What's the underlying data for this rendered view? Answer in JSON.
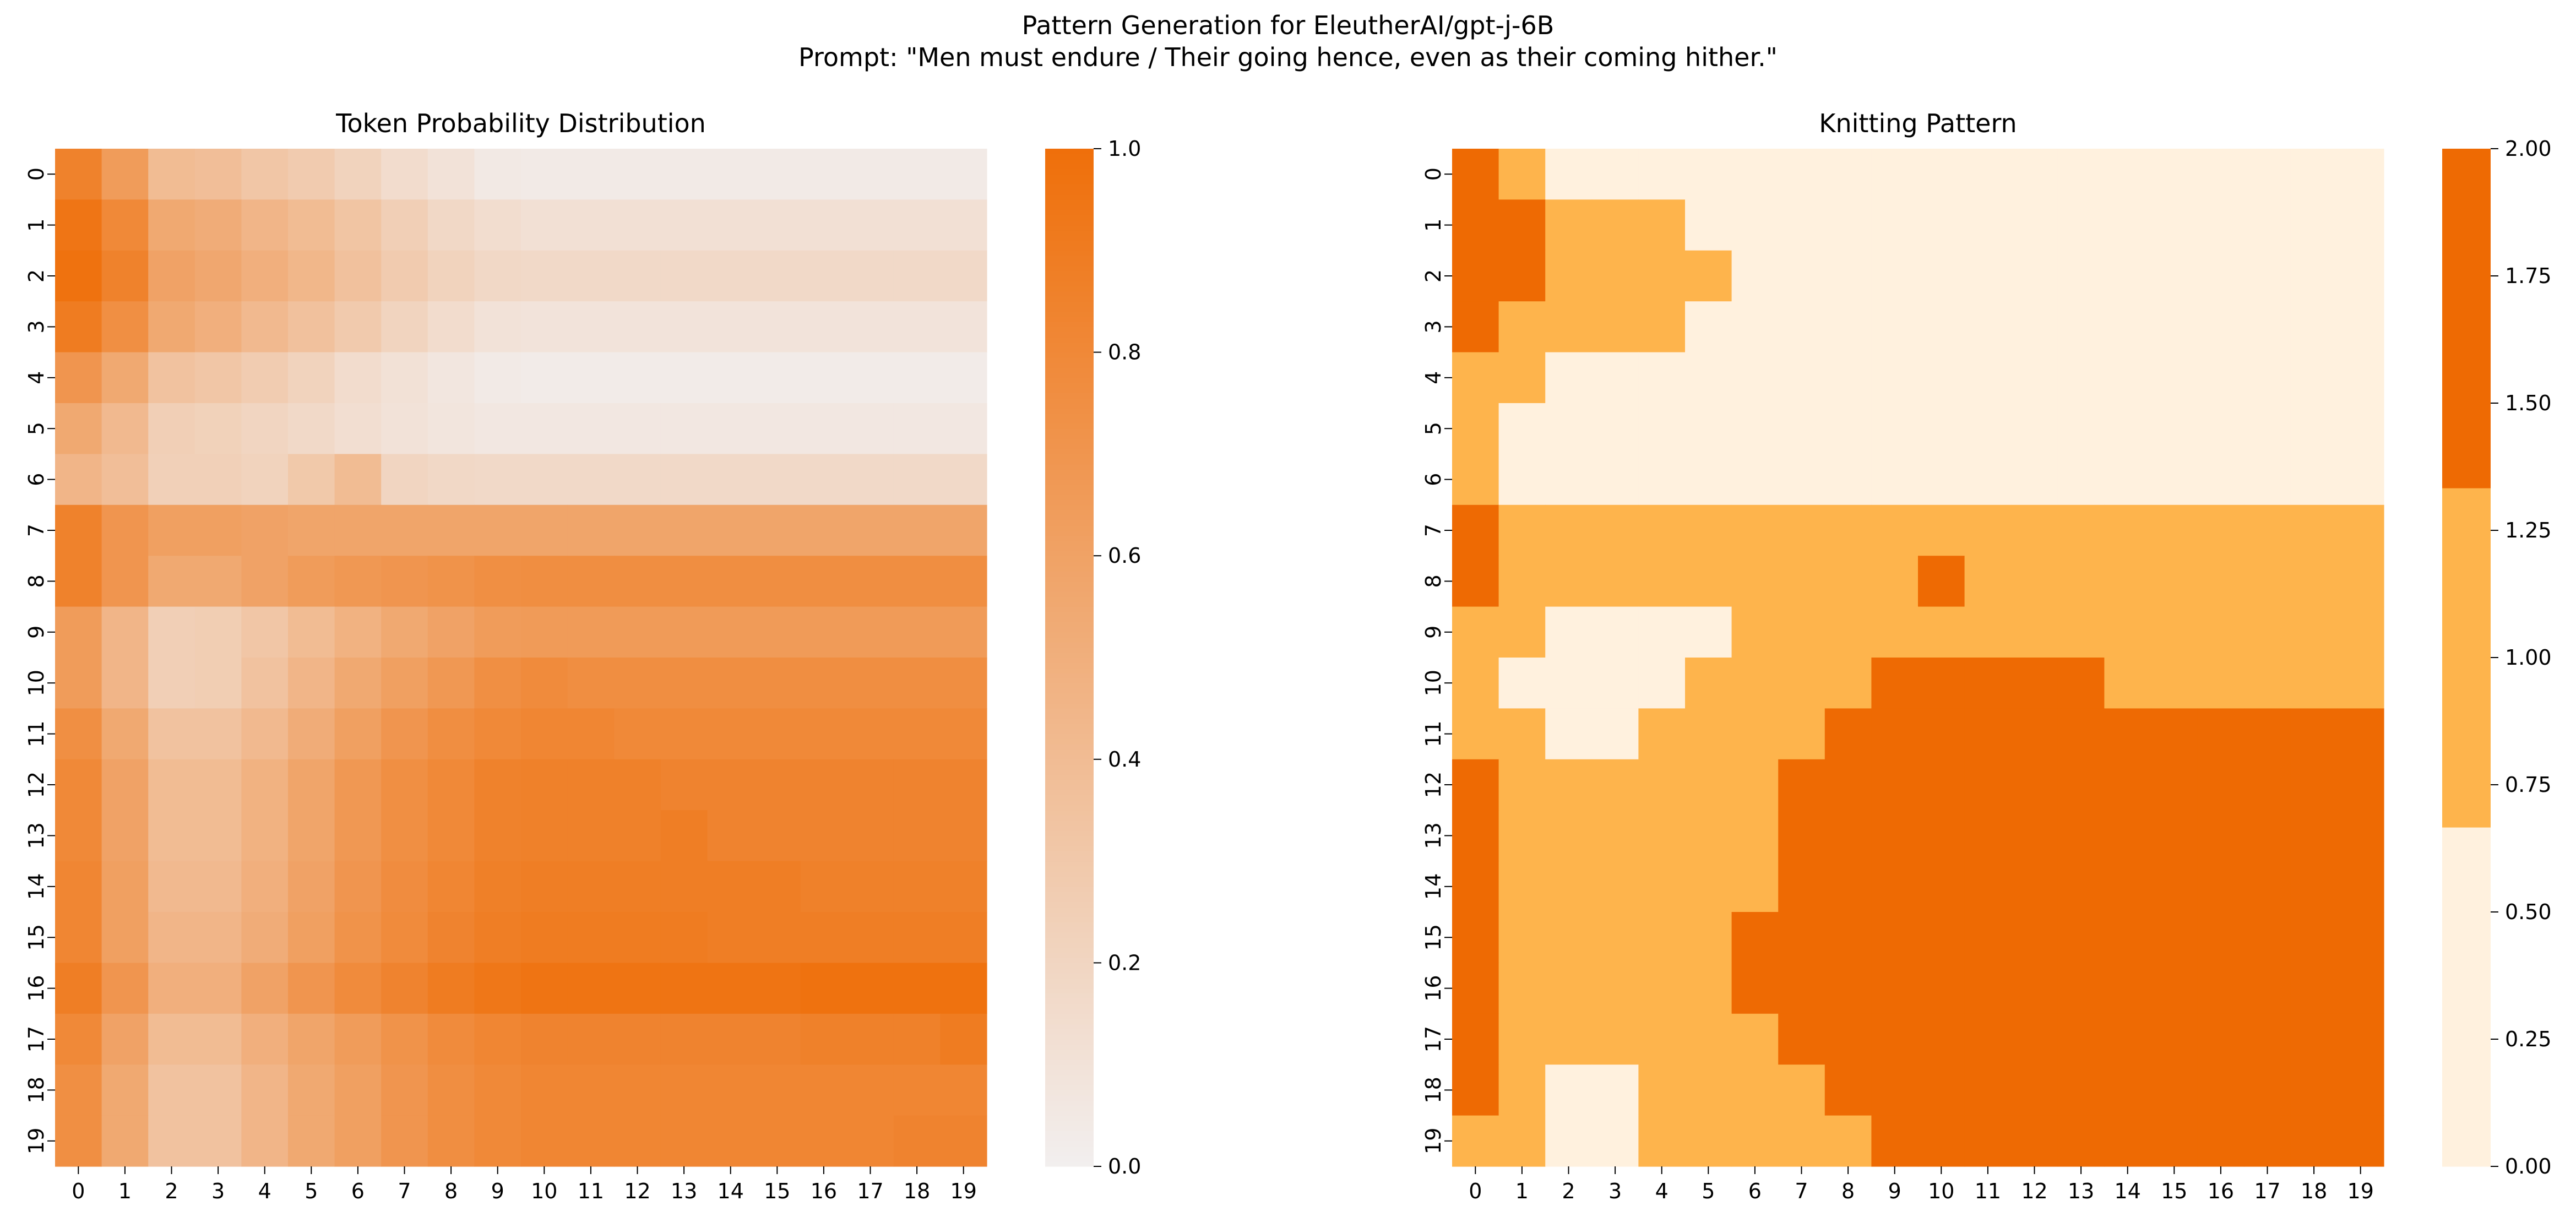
{
  "figure": {
    "suptitle_line1": "Pattern Generation for EleutherAI/gpt-j-6B",
    "suptitle_line2": "Prompt: \"Men must endure / Their going hence, even as their coming hither.\""
  },
  "chart_data": [
    {
      "type": "heatmap",
      "title": "Token Probability Distribution",
      "xlabel": "",
      "ylabel": "",
      "x_tick_labels": [
        "0",
        "1",
        "2",
        "3",
        "4",
        "5",
        "6",
        "7",
        "8",
        "9",
        "10",
        "11",
        "12",
        "13",
        "14",
        "15",
        "16",
        "17",
        "18",
        "19"
      ],
      "y_tick_labels": [
        "0",
        "1",
        "2",
        "3",
        "4",
        "5",
        "6",
        "7",
        "8",
        "9",
        "10",
        "11",
        "12",
        "13",
        "14",
        "15",
        "16",
        "17",
        "18",
        "19"
      ],
      "color_range": [
        0,
        1
      ],
      "colormap": [
        "#f2efef",
        "#ef6f0a"
      ],
      "colorbar": {
        "ticks": [
          0.0,
          0.2,
          0.4,
          0.6,
          0.8,
          1.0
        ],
        "tick_labels": [
          "0.0",
          "0.2",
          "0.4",
          "0.6",
          "0.8",
          "1.0"
        ]
      },
      "matrix": [
        [
          0.85,
          0.65,
          0.4,
          0.38,
          0.32,
          0.28,
          0.22,
          0.15,
          0.1,
          0.05,
          0.04,
          0.04,
          0.04,
          0.04,
          0.04,
          0.04,
          0.04,
          0.04,
          0.04,
          0.04
        ],
        [
          0.95,
          0.8,
          0.55,
          0.52,
          0.45,
          0.4,
          0.33,
          0.25,
          0.18,
          0.14,
          0.12,
          0.12,
          0.12,
          0.12,
          0.12,
          0.12,
          0.12,
          0.12,
          0.12,
          0.12
        ],
        [
          0.98,
          0.85,
          0.6,
          0.56,
          0.5,
          0.44,
          0.36,
          0.28,
          0.22,
          0.18,
          0.17,
          0.17,
          0.17,
          0.17,
          0.17,
          0.17,
          0.17,
          0.17,
          0.17,
          0.17
        ],
        [
          0.9,
          0.75,
          0.55,
          0.5,
          0.42,
          0.36,
          0.29,
          0.21,
          0.15,
          0.1,
          0.09,
          0.09,
          0.09,
          0.09,
          0.09,
          0.09,
          0.09,
          0.09,
          0.09,
          0.09
        ],
        [
          0.7,
          0.55,
          0.35,
          0.32,
          0.27,
          0.22,
          0.15,
          0.11,
          0.07,
          0.04,
          0.03,
          0.03,
          0.03,
          0.03,
          0.03,
          0.03,
          0.03,
          0.03,
          0.03,
          0.03
        ],
        [
          0.55,
          0.42,
          0.25,
          0.23,
          0.2,
          0.17,
          0.13,
          0.1,
          0.08,
          0.06,
          0.06,
          0.06,
          0.06,
          0.06,
          0.06,
          0.06,
          0.06,
          0.06,
          0.06,
          0.06
        ],
        [
          0.45,
          0.38,
          0.24,
          0.24,
          0.22,
          0.3,
          0.4,
          0.2,
          0.18,
          0.17,
          0.17,
          0.17,
          0.17,
          0.17,
          0.17,
          0.17,
          0.17,
          0.17,
          0.17,
          0.17
        ],
        [
          0.85,
          0.7,
          0.62,
          0.62,
          0.6,
          0.58,
          0.58,
          0.58,
          0.58,
          0.58,
          0.58,
          0.58,
          0.58,
          0.58,
          0.58,
          0.58,
          0.58,
          0.58,
          0.58,
          0.58
        ],
        [
          0.85,
          0.7,
          0.55,
          0.55,
          0.6,
          0.65,
          0.68,
          0.7,
          0.72,
          0.75,
          0.76,
          0.76,
          0.76,
          0.76,
          0.76,
          0.76,
          0.76,
          0.76,
          0.76,
          0.76
        ],
        [
          0.65,
          0.45,
          0.25,
          0.26,
          0.32,
          0.4,
          0.48,
          0.55,
          0.6,
          0.65,
          0.66,
          0.66,
          0.66,
          0.66,
          0.66,
          0.66,
          0.66,
          0.66,
          0.66,
          0.66
        ],
        [
          0.65,
          0.45,
          0.25,
          0.26,
          0.35,
          0.45,
          0.55,
          0.62,
          0.68,
          0.75,
          0.78,
          0.76,
          0.76,
          0.76,
          0.76,
          0.76,
          0.76,
          0.76,
          0.76,
          0.76
        ],
        [
          0.75,
          0.55,
          0.35,
          0.35,
          0.42,
          0.52,
          0.62,
          0.7,
          0.76,
          0.8,
          0.82,
          0.82,
          0.8,
          0.8,
          0.8,
          0.8,
          0.8,
          0.8,
          0.8,
          0.8
        ],
        [
          0.8,
          0.6,
          0.4,
          0.4,
          0.48,
          0.58,
          0.68,
          0.75,
          0.8,
          0.85,
          0.86,
          0.86,
          0.86,
          0.84,
          0.84,
          0.84,
          0.84,
          0.84,
          0.84,
          0.84
        ],
        [
          0.8,
          0.6,
          0.4,
          0.4,
          0.48,
          0.58,
          0.68,
          0.75,
          0.8,
          0.85,
          0.86,
          0.86,
          0.86,
          0.88,
          0.84,
          0.84,
          0.84,
          0.84,
          0.84,
          0.84
        ],
        [
          0.82,
          0.62,
          0.42,
          0.42,
          0.5,
          0.6,
          0.7,
          0.77,
          0.82,
          0.87,
          0.88,
          0.88,
          0.88,
          0.88,
          0.88,
          0.88,
          0.86,
          0.86,
          0.86,
          0.86
        ],
        [
          0.82,
          0.62,
          0.45,
          0.45,
          0.52,
          0.62,
          0.72,
          0.78,
          0.84,
          0.88,
          0.9,
          0.9,
          0.9,
          0.9,
          0.88,
          0.88,
          0.88,
          0.88,
          0.88,
          0.88
        ],
        [
          0.88,
          0.7,
          0.5,
          0.5,
          0.6,
          0.7,
          0.78,
          0.84,
          0.9,
          0.94,
          0.96,
          0.96,
          0.96,
          0.96,
          0.96,
          0.96,
          0.98,
          0.98,
          0.98,
          0.98
        ],
        [
          0.8,
          0.6,
          0.4,
          0.4,
          0.5,
          0.58,
          0.65,
          0.72,
          0.78,
          0.82,
          0.84,
          0.84,
          0.84,
          0.84,
          0.84,
          0.84,
          0.86,
          0.86,
          0.86,
          0.9
        ],
        [
          0.75,
          0.55,
          0.35,
          0.35,
          0.45,
          0.55,
          0.62,
          0.7,
          0.76,
          0.8,
          0.82,
          0.82,
          0.82,
          0.82,
          0.82,
          0.82,
          0.82,
          0.82,
          0.82,
          0.82
        ],
        [
          0.75,
          0.55,
          0.35,
          0.35,
          0.45,
          0.55,
          0.62,
          0.7,
          0.76,
          0.8,
          0.82,
          0.82,
          0.82,
          0.82,
          0.82,
          0.82,
          0.82,
          0.82,
          0.84,
          0.84
        ]
      ]
    },
    {
      "type": "heatmap",
      "title": "Knitting Pattern",
      "xlabel": "",
      "ylabel": "",
      "x_tick_labels": [
        "0",
        "1",
        "2",
        "3",
        "4",
        "5",
        "6",
        "7",
        "8",
        "9",
        "10",
        "11",
        "12",
        "13",
        "14",
        "15",
        "16",
        "17",
        "18",
        "19"
      ],
      "y_tick_labels": [
        "0",
        "1",
        "2",
        "3",
        "4",
        "5",
        "6",
        "7",
        "8",
        "9",
        "10",
        "11",
        "12",
        "13",
        "14",
        "15",
        "16",
        "17",
        "18",
        "19"
      ],
      "color_range": [
        0,
        2
      ],
      "colormap_discrete": [
        "#fff1de",
        "#feb44c",
        "#ee6a03"
      ],
      "colorbar": {
        "ticks": [
          0.0,
          0.25,
          0.5,
          0.75,
          1.0,
          1.25,
          1.5,
          1.75,
          2.0
        ],
        "tick_labels": [
          "0.00",
          "0.25",
          "0.50",
          "0.75",
          "1.00",
          "1.25",
          "1.50",
          "1.75",
          "2.00"
        ]
      },
      "matrix": [
        [
          2,
          1,
          0,
          0,
          0,
          0,
          0,
          0,
          0,
          0,
          0,
          0,
          0,
          0,
          0,
          0,
          0,
          0,
          0,
          0
        ],
        [
          2,
          2,
          1,
          1,
          1,
          0,
          0,
          0,
          0,
          0,
          0,
          0,
          0,
          0,
          0,
          0,
          0,
          0,
          0,
          0
        ],
        [
          2,
          2,
          1,
          1,
          1,
          1,
          0,
          0,
          0,
          0,
          0,
          0,
          0,
          0,
          0,
          0,
          0,
          0,
          0,
          0
        ],
        [
          2,
          1,
          1,
          1,
          1,
          0,
          0,
          0,
          0,
          0,
          0,
          0,
          0,
          0,
          0,
          0,
          0,
          0,
          0,
          0
        ],
        [
          1,
          1,
          0,
          0,
          0,
          0,
          0,
          0,
          0,
          0,
          0,
          0,
          0,
          0,
          0,
          0,
          0,
          0,
          0,
          0
        ],
        [
          1,
          0,
          0,
          0,
          0,
          0,
          0,
          0,
          0,
          0,
          0,
          0,
          0,
          0,
          0,
          0,
          0,
          0,
          0,
          0
        ],
        [
          1,
          0,
          0,
          0,
          0,
          0,
          0,
          0,
          0,
          0,
          0,
          0,
          0,
          0,
          0,
          0,
          0,
          0,
          0,
          0
        ],
        [
          2,
          1,
          1,
          1,
          1,
          1,
          1,
          1,
          1,
          1,
          1,
          1,
          1,
          1,
          1,
          1,
          1,
          1,
          1,
          1
        ],
        [
          2,
          1,
          1,
          1,
          1,
          1,
          1,
          1,
          1,
          1,
          2,
          1,
          1,
          1,
          1,
          1,
          1,
          1,
          1,
          1
        ],
        [
          1,
          1,
          0,
          0,
          0,
          0,
          1,
          1,
          1,
          1,
          1,
          1,
          1,
          1,
          1,
          1,
          1,
          1,
          1,
          1
        ],
        [
          1,
          0,
          0,
          0,
          0,
          1,
          1,
          1,
          1,
          2,
          2,
          2,
          2,
          2,
          1,
          1,
          1,
          1,
          1,
          1
        ],
        [
          1,
          1,
          0,
          0,
          1,
          1,
          1,
          1,
          2,
          2,
          2,
          2,
          2,
          2,
          2,
          2,
          2,
          2,
          2,
          2
        ],
        [
          2,
          1,
          1,
          1,
          1,
          1,
          1,
          2,
          2,
          2,
          2,
          2,
          2,
          2,
          2,
          2,
          2,
          2,
          2,
          2
        ],
        [
          2,
          1,
          1,
          1,
          1,
          1,
          1,
          2,
          2,
          2,
          2,
          2,
          2,
          2,
          2,
          2,
          2,
          2,
          2,
          2
        ],
        [
          2,
          1,
          1,
          1,
          1,
          1,
          1,
          2,
          2,
          2,
          2,
          2,
          2,
          2,
          2,
          2,
          2,
          2,
          2,
          2
        ],
        [
          2,
          1,
          1,
          1,
          1,
          1,
          2,
          2,
          2,
          2,
          2,
          2,
          2,
          2,
          2,
          2,
          2,
          2,
          2,
          2
        ],
        [
          2,
          1,
          1,
          1,
          1,
          1,
          2,
          2,
          2,
          2,
          2,
          2,
          2,
          2,
          2,
          2,
          2,
          2,
          2,
          2
        ],
        [
          2,
          1,
          1,
          1,
          1,
          1,
          1,
          2,
          2,
          2,
          2,
          2,
          2,
          2,
          2,
          2,
          2,
          2,
          2,
          2
        ],
        [
          2,
          1,
          0,
          0,
          1,
          1,
          1,
          1,
          2,
          2,
          2,
          2,
          2,
          2,
          2,
          2,
          2,
          2,
          2,
          2
        ],
        [
          1,
          1,
          0,
          0,
          1,
          1,
          1,
          1,
          1,
          2,
          2,
          2,
          2,
          2,
          2,
          2,
          2,
          2,
          2,
          2
        ]
      ]
    }
  ]
}
